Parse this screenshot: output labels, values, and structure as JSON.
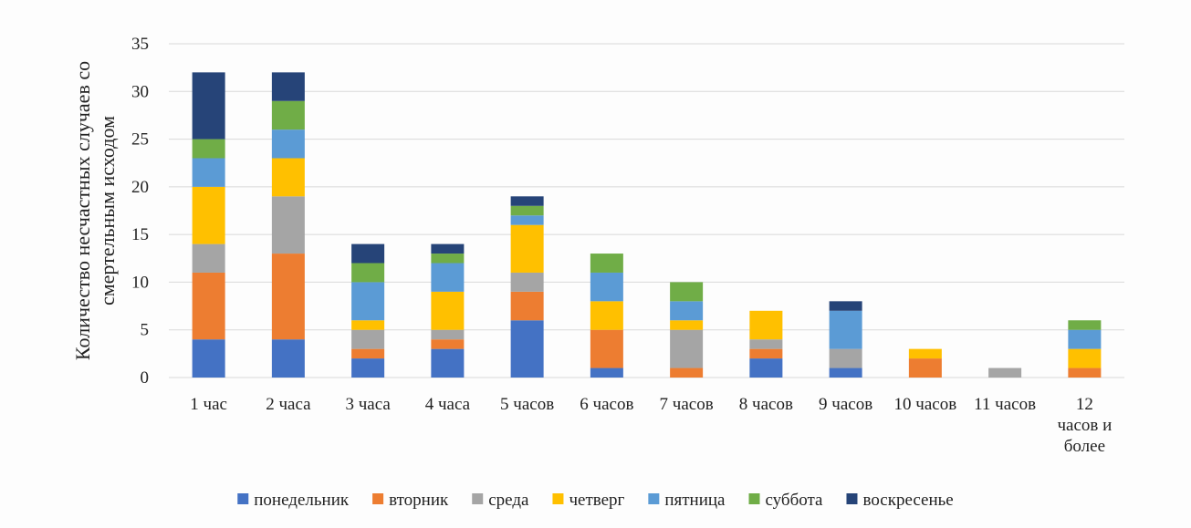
{
  "chart_data": {
    "type": "bar",
    "stacked": true,
    "title": "",
    "xlabel": "",
    "ylabel_lines": [
      "Количество несчастных случаев со",
      "смертельным исходом"
    ],
    "ylim": [
      0,
      35
    ],
    "yticks": [
      0,
      5,
      10,
      15,
      20,
      25,
      30,
      35
    ],
    "grid": true,
    "legend_position": "bottom",
    "categories": [
      [
        "1 час"
      ],
      [
        "2 часа"
      ],
      [
        "3 часа"
      ],
      [
        "4 часа"
      ],
      [
        "5 часов"
      ],
      [
        "6 часов"
      ],
      [
        "7 часов"
      ],
      [
        "8 часов"
      ],
      [
        "9 часов"
      ],
      [
        "10 часов"
      ],
      [
        "11 часов"
      ],
      [
        "12",
        "часов и",
        "более"
      ]
    ],
    "series": [
      {
        "name": "понедельник",
        "color": "#4472C4",
        "values": [
          4,
          4,
          2,
          3,
          6,
          1,
          0,
          2,
          1,
          0,
          0,
          0
        ]
      },
      {
        "name": "вторник",
        "color": "#ED7D31",
        "values": [
          7,
          9,
          1,
          1,
          3,
          4,
          1,
          1,
          0,
          2,
          0,
          1
        ]
      },
      {
        "name": "среда",
        "color": "#A5A5A5",
        "values": [
          3,
          6,
          2,
          1,
          2,
          0,
          4,
          1,
          2,
          0,
          1,
          0
        ]
      },
      {
        "name": "четверг",
        "color": "#FFC000",
        "values": [
          6,
          4,
          1,
          4,
          5,
          3,
          1,
          3,
          0,
          1,
          0,
          2
        ]
      },
      {
        "name": "пятница",
        "color": "#5B9BD5",
        "values": [
          3,
          3,
          4,
          3,
          1,
          3,
          2,
          0,
          4,
          0,
          0,
          2
        ]
      },
      {
        "name": "суббота",
        "color": "#70AD47",
        "values": [
          2,
          3,
          2,
          1,
          1,
          2,
          2,
          0,
          0,
          0,
          0,
          1
        ]
      },
      {
        "name": "воскресенье",
        "color": "#264478",
        "values": [
          7,
          3,
          2,
          1,
          1,
          0,
          0,
          0,
          1,
          0,
          0,
          0
        ]
      }
    ]
  }
}
